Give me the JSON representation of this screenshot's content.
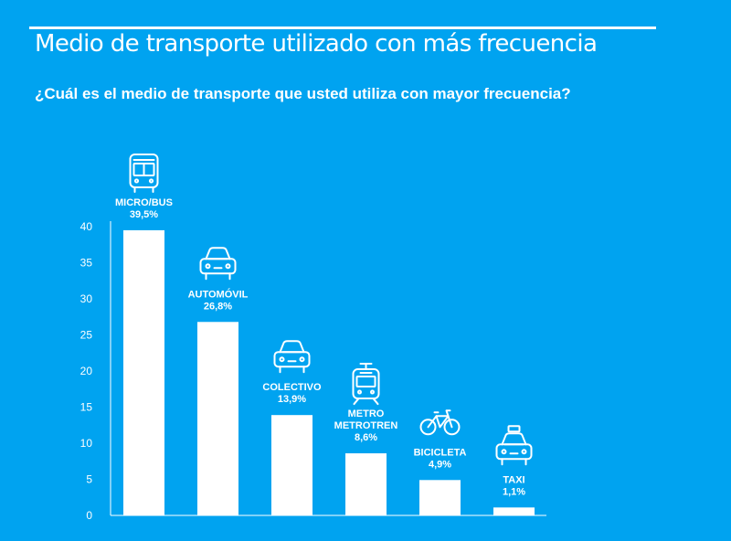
{
  "title": "Medio de transporte utilizado con más frecuencia",
  "subtitle": "¿Cuál es el medio de transporte que usted utiliza con mayor frecuencia?",
  "colors": {
    "background": "#00A3F0",
    "bars": "#FFFFFF",
    "text": "#FFFFFF"
  },
  "chart_data": {
    "type": "bar",
    "title": "Medio de transporte utilizado con más frecuencia",
    "subtitle": "¿Cuál es el medio de transporte que usted utiliza con mayor frecuencia?",
    "categories": [
      "MICRO/BUS",
      "AUTOMÓVIL",
      "COLECTIVO",
      "METRO METROTREN",
      "BICICLETA",
      "TAXI"
    ],
    "label_lines": [
      [
        "MICRO/BUS"
      ],
      [
        "AUTOMÓVIL"
      ],
      [
        "COLECTIVO"
      ],
      [
        "METRO",
        "METROTREN"
      ],
      [
        "BICICLETA"
      ],
      [
        "TAXI"
      ]
    ],
    "values": [
      39.5,
      26.8,
      13.9,
      8.6,
      4.9,
      1.1
    ],
    "value_labels": [
      "39,5%",
      "26,8%",
      "13,9%",
      "8,6%",
      "4,9%",
      "1,1%"
    ],
    "icons": [
      "bus-icon",
      "car-icon",
      "car-icon",
      "metro-icon",
      "bicycle-icon",
      "taxi-icon"
    ],
    "ylim": [
      0,
      40
    ],
    "yticks": [
      0,
      5,
      10,
      15,
      20,
      25,
      30,
      35,
      40
    ],
    "grid": false,
    "legend": "none"
  }
}
